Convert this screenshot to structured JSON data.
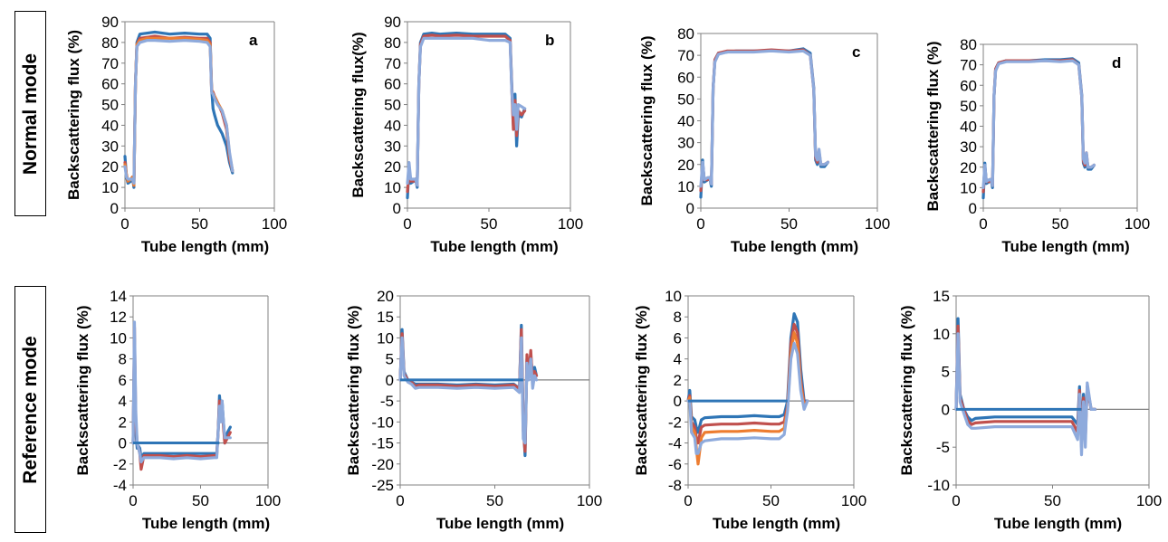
{
  "row_labels": [
    "Normal mode",
    "Reference mode"
  ],
  "colors": {
    "series": [
      "#2e75b6",
      "#c0504d",
      "#ed7d31",
      "#9bbb59",
      "#4bacc6",
      "#8eaadc"
    ],
    "baseline": "#2e75b6",
    "zero_line": "#808080",
    "axis": "#808080",
    "text": "#000000"
  },
  "chart_data": [
    {
      "type": "line",
      "panel_letter": "a",
      "xlabel": "Tube length (mm)",
      "ylabel": "Backscattering flux (%)",
      "xlim": [
        0,
        100
      ],
      "ylim": [
        0,
        90
      ],
      "xticks": [
        0,
        50,
        100
      ],
      "yticks": [
        0,
        10,
        20,
        30,
        40,
        50,
        60,
        70,
        80,
        90
      ],
      "grid": false,
      "x": [
        0,
        1,
        2,
        4,
        5,
        6,
        7,
        8,
        10,
        15,
        20,
        30,
        40,
        50,
        55,
        57,
        58,
        59,
        60,
        62,
        65,
        68,
        70,
        72
      ],
      "series": [
        {
          "values": [
            25,
            15,
            12,
            13,
            15,
            10,
            60,
            80,
            84,
            84.5,
            85,
            84,
            84.5,
            84,
            84,
            82,
            58,
            48,
            45,
            40,
            36,
            30,
            22,
            17
          ]
        },
        {
          "values": [
            22,
            16,
            13,
            14,
            15,
            11,
            60,
            79,
            82,
            82.5,
            83,
            82,
            82.5,
            82,
            82,
            80,
            57,
            56,
            54,
            51,
            46,
            38,
            24,
            18
          ]
        },
        {
          "values": [
            21,
            16,
            13,
            14,
            15,
            11,
            60,
            79,
            81,
            82,
            82,
            82,
            82,
            81.5,
            81,
            79,
            57,
            55,
            54,
            51,
            47,
            40,
            26,
            18
          ]
        },
        {
          "values": [
            20,
            15,
            14,
            14,
            14,
            12,
            60,
            78,
            80,
            81,
            81,
            80.5,
            81,
            80.5,
            80,
            78,
            56,
            55,
            53,
            50,
            47,
            40,
            27,
            18
          ]
        }
      ]
    },
    {
      "type": "line",
      "panel_letter": "b",
      "xlabel": "Tube length (mm)",
      "ylabel": "Backscattering flux(%)",
      "xlim": [
        0,
        100
      ],
      "ylim": [
        0,
        90
      ],
      "xticks": [
        0,
        50,
        100
      ],
      "yticks": [
        0,
        10,
        20,
        30,
        40,
        50,
        60,
        70,
        80,
        90
      ],
      "grid": false,
      "x": [
        0,
        1,
        2,
        4,
        5,
        6,
        7,
        8,
        10,
        15,
        20,
        30,
        40,
        50,
        60,
        63,
        64,
        65,
        66,
        67,
        68,
        70,
        72
      ],
      "series": [
        {
          "values": [
            5,
            20,
            12,
            13,
            14,
            10,
            60,
            80,
            84,
            84.5,
            84,
            84.5,
            84,
            84,
            84,
            82,
            60,
            40,
            55,
            30,
            45,
            44,
            48
          ]
        },
        {
          "values": [
            8,
            18,
            13,
            13,
            14,
            11,
            60,
            79,
            83,
            83.5,
            83,
            83.5,
            83,
            83,
            83,
            81,
            58,
            38,
            52,
            35,
            47,
            45,
            47
          ]
        },
        {
          "values": [
            12,
            22,
            14,
            14,
            14,
            11,
            60,
            78,
            82,
            82,
            82,
            82,
            82,
            81,
            81,
            80,
            57,
            45,
            50,
            38,
            50,
            49,
            48
          ]
        }
      ]
    },
    {
      "type": "line",
      "panel_letter": "c",
      "xlabel": "Tube length (mm)",
      "ylabel": "Backscattering flux (%)",
      "xlim": [
        0,
        100
      ],
      "ylim": [
        0,
        80
      ],
      "xticks": [
        0,
        50,
        100
      ],
      "yticks": [
        0,
        10,
        20,
        30,
        40,
        50,
        60,
        70,
        80
      ],
      "grid": false,
      "x": [
        0,
        1,
        2,
        4,
        5,
        6,
        7,
        8,
        10,
        15,
        20,
        30,
        40,
        50,
        58,
        62,
        64,
        65,
        66,
        67,
        68,
        70,
        72
      ],
      "series": [
        {
          "values": [
            5,
            22,
            12,
            13,
            14,
            10,
            55,
            68,
            71,
            71.5,
            72,
            72,
            72,
            72,
            73,
            71,
            55,
            22,
            20,
            25,
            19,
            19,
            21
          ]
        },
        {
          "values": [
            8,
            20,
            13,
            13,
            14,
            11,
            55,
            68,
            71,
            72,
            72,
            72,
            72.5,
            72,
            72.5,
            70,
            54,
            23,
            21,
            26,
            20,
            20,
            21
          ]
        },
        {
          "values": [
            10,
            21,
            13,
            14,
            14,
            11,
            55,
            67,
            70.5,
            71.5,
            71.5,
            71.5,
            72,
            71.5,
            72,
            70,
            54,
            24,
            22,
            27,
            20,
            20,
            21
          ]
        }
      ]
    },
    {
      "type": "line",
      "panel_letter": "d",
      "xlabel": "Tube length (mm)",
      "ylabel": "Backscattering flux (%)",
      "xlim": [
        0,
        100
      ],
      "ylim": [
        0,
        80
      ],
      "xticks": [
        0,
        50,
        100
      ],
      "yticks": [
        0,
        10,
        20,
        30,
        40,
        50,
        60,
        70,
        80
      ],
      "grid": false,
      "x": [
        0,
        1,
        2,
        4,
        5,
        6,
        7,
        8,
        10,
        15,
        20,
        30,
        40,
        50,
        58,
        62,
        64,
        65,
        66,
        67,
        68,
        70,
        72
      ],
      "series": [
        {
          "values": [
            5,
            22,
            12,
            13,
            14,
            10,
            55,
            68,
            71,
            72,
            72,
            72,
            72.5,
            72.5,
            73,
            71,
            55,
            22,
            20,
            26,
            19,
            19,
            21
          ]
        },
        {
          "values": [
            8,
            20,
            13,
            13,
            14,
            11,
            55,
            68,
            71,
            72,
            72,
            72,
            72,
            72,
            72.5,
            70,
            54,
            23,
            21,
            27,
            20,
            20,
            21
          ]
        },
        {
          "values": [
            10,
            21,
            13,
            14,
            14,
            11,
            55,
            67,
            70.5,
            71.5,
            71.5,
            71.5,
            72,
            71.5,
            72,
            70,
            54,
            24,
            22,
            27,
            20,
            20,
            21
          ]
        }
      ]
    },
    {
      "type": "line",
      "xlabel": "Tube length (mm)",
      "ylabel": "Backscattering flux (%)",
      "xlim": [
        0,
        100
      ],
      "ylim": [
        -4,
        14
      ],
      "xticks": [
        0,
        50,
        100
      ],
      "yticks": [
        -4,
        -2,
        0,
        2,
        4,
        6,
        8,
        10,
        12,
        14
      ],
      "grid": false,
      "baseline": {
        "x": [
          0,
          64
        ],
        "y": 0
      },
      "x": [
        0,
        1,
        2,
        3,
        4,
        5,
        6,
        8,
        10,
        20,
        30,
        40,
        50,
        60,
        62,
        63,
        64,
        65,
        66,
        67,
        68,
        70,
        72
      ],
      "series": [
        {
          "values": [
            0,
            10,
            1,
            -0.5,
            -0.3,
            -0.5,
            -1.5,
            -1,
            -1,
            -1,
            -1,
            -1,
            -1,
            -1,
            -1,
            1,
            4.5,
            3,
            4,
            2,
            0,
            1,
            1.5
          ]
        },
        {
          "values": [
            0,
            11,
            2,
            0,
            -0.5,
            -1,
            -2.5,
            -1.2,
            -1.2,
            -1.2,
            -1.3,
            -1.2,
            -1.3,
            -1.2,
            -1.2,
            1,
            4,
            2.5,
            3.5,
            1.5,
            0,
            0.5,
            1
          ]
        },
        {
          "values": [
            0,
            11.5,
            3,
            0,
            -0.5,
            -1,
            -1.8,
            -1.4,
            -1.4,
            -1.4,
            -1.5,
            -1.4,
            -1.5,
            -1.4,
            -1.4,
            1,
            3.5,
            2,
            4,
            2,
            0.5,
            0.5,
            0.5
          ]
        }
      ]
    },
    {
      "type": "line",
      "xlabel": "Tube length (mm)",
      "ylabel": "Backscattering flux (%)",
      "xlim": [
        0,
        100
      ],
      "ylim": [
        -25,
        20
      ],
      "xticks": [
        0,
        50,
        100
      ],
      "yticks": [
        -25,
        -20,
        -15,
        -10,
        -5,
        0,
        5,
        10,
        15,
        20
      ],
      "grid": false,
      "baseline": {
        "x": [
          0,
          65
        ],
        "y": 0
      },
      "x": [
        0,
        1,
        2,
        4,
        6,
        8,
        10,
        20,
        30,
        40,
        50,
        60,
        63,
        64,
        65,
        66,
        67,
        68,
        69,
        70,
        71,
        72
      ],
      "series": [
        {
          "values": [
            0,
            12,
            2,
            0,
            -0.5,
            -1,
            -1,
            -1,
            -1.2,
            -1,
            -1.2,
            -1,
            -2,
            13,
            -10,
            -18,
            5,
            2,
            6,
            0,
            3,
            1
          ]
        },
        {
          "values": [
            0,
            11,
            1.5,
            0,
            -0.5,
            -1.5,
            -1.2,
            -1.2,
            -1.5,
            -1.2,
            -1.5,
            -1.2,
            -2,
            12,
            -12,
            -17,
            6,
            1,
            7,
            -1,
            2,
            1
          ]
        },
        {
          "values": [
            0,
            10,
            1,
            -0.5,
            -1,
            -2,
            -1.8,
            -1.8,
            -2,
            -1.8,
            -2,
            -1.8,
            -3,
            10,
            -14,
            -15,
            4,
            0,
            5,
            -2,
            1,
            0
          ]
        }
      ]
    },
    {
      "type": "line",
      "xlabel": "Tube length (mm)",
      "ylabel": "Backscattering flux (%)",
      "xlim": [
        0,
        100
      ],
      "ylim": [
        -8,
        10
      ],
      "xticks": [
        0,
        50,
        100
      ],
      "yticks": [
        -8,
        -6,
        -4,
        -2,
        0,
        2,
        4,
        6,
        8,
        10
      ],
      "grid": false,
      "baseline": {
        "x": [
          0,
          60
        ],
        "y": 0
      },
      "x": [
        0,
        1,
        2,
        4,
        5,
        6,
        8,
        10,
        20,
        30,
        40,
        50,
        55,
        58,
        60,
        62,
        64,
        66,
        68,
        70,
        72
      ],
      "series": [
        {
          "values": [
            0,
            1,
            -1.5,
            -1.8,
            -2.5,
            -3,
            -1.8,
            -1.6,
            -1.5,
            -1.5,
            -1.4,
            -1.5,
            -1.5,
            -1.3,
            0,
            6,
            8.3,
            7.5,
            3,
            0,
            0
          ]
        },
        {
          "values": [
            0,
            0.5,
            -2,
            -2.5,
            -3.5,
            -4,
            -2.5,
            -2.3,
            -2.2,
            -2.2,
            -2.1,
            -2.2,
            -2.2,
            -2,
            -0.5,
            5.5,
            7.3,
            6.5,
            2,
            -0.3,
            0
          ]
        },
        {
          "values": [
            0,
            0.3,
            -2.5,
            -3,
            -4.5,
            -6,
            -3.5,
            -3,
            -2.9,
            -2.9,
            -2.8,
            -2.9,
            -2.9,
            -2.6,
            -0.8,
            4.5,
            6.5,
            5.5,
            1.5,
            -0.5,
            0
          ]
        },
        {
          "values": [
            0,
            0,
            -3,
            -3.5,
            -5,
            -5,
            -4,
            -3.8,
            -3.6,
            -3.6,
            -3.5,
            -3.6,
            -3.6,
            -3.2,
            -1,
            4,
            5.5,
            4.5,
            1,
            -0.8,
            0
          ]
        }
      ]
    },
    {
      "type": "line",
      "xlabel": "Tube length (mm)",
      "ylabel": "Backscattering flux (%)",
      "xlim": [
        0,
        100
      ],
      "ylim": [
        -10,
        15
      ],
      "xticks": [
        0,
        50,
        100
      ],
      "yticks": [
        -10,
        -5,
        0,
        5,
        10,
        15
      ],
      "grid": false,
      "baseline": {
        "x": [
          0,
          65
        ],
        "y": 0
      },
      "x": [
        0,
        1,
        2,
        4,
        6,
        8,
        10,
        20,
        30,
        40,
        50,
        60,
        63,
        64,
        65,
        66,
        67,
        68,
        70,
        72
      ],
      "series": [
        {
          "values": [
            0,
            12,
            2,
            0,
            -1,
            -1.5,
            -1.2,
            -1,
            -1,
            -1,
            -1,
            -1,
            -2,
            3,
            -4,
            2,
            -3,
            3,
            0,
            0
          ]
        },
        {
          "values": [
            0,
            11,
            1.5,
            0,
            -1.5,
            -2,
            -1.8,
            -1.6,
            -1.6,
            -1.6,
            -1.6,
            -1.6,
            -3,
            2.5,
            -5,
            1.5,
            -4,
            3,
            0,
            0
          ]
        },
        {
          "values": [
            0,
            10,
            1,
            -0.5,
            -2,
            -2.5,
            -2.5,
            -2.3,
            -2.3,
            -2.3,
            -2.3,
            -2.3,
            -4,
            2,
            -6,
            1,
            -5,
            3.5,
            0,
            0
          ]
        }
      ]
    }
  ]
}
